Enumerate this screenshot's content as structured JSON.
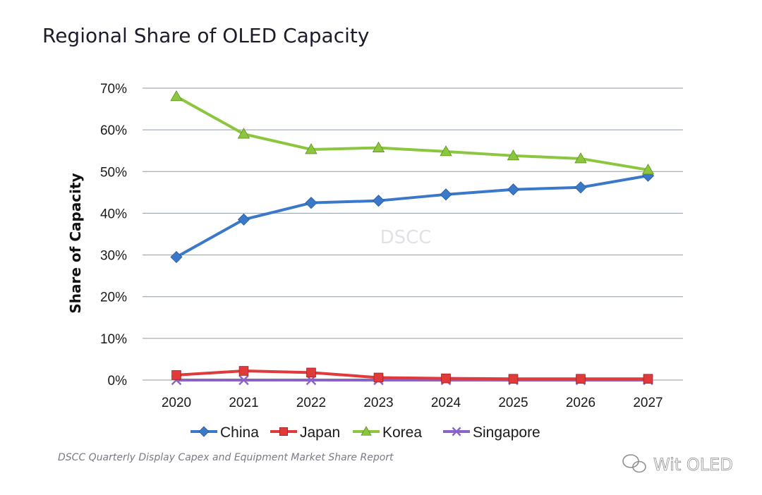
{
  "chart_data": {
    "type": "line",
    "title": "Regional Share of OLED Capacity",
    "xlabel": "",
    "ylabel": "Share of Capacity",
    "x": [
      "2020",
      "2021",
      "2022",
      "2023",
      "2024",
      "2025",
      "2026",
      "2027"
    ],
    "ylim": [
      0,
      70
    ],
    "yticks": [
      0,
      10,
      20,
      30,
      40,
      50,
      60,
      70
    ],
    "ytick_labels": [
      "0%",
      "10%",
      "20%",
      "30%",
      "40%",
      "50%",
      "60%",
      "70%"
    ],
    "grid": true,
    "legend_position": "bottom",
    "series": [
      {
        "name": "China",
        "color": "#3a78c9",
        "marker": "diamond",
        "values": [
          29.5,
          38.5,
          42.5,
          43.0,
          44.5,
          45.7,
          46.2,
          49.0
        ]
      },
      {
        "name": "Japan",
        "color": "#e03a3a",
        "marker": "square",
        "values": [
          1.2,
          2.2,
          1.8,
          0.6,
          0.4,
          0.3,
          0.3,
          0.3
        ]
      },
      {
        "name": "Korea",
        "color": "#8cc63f",
        "marker": "triangle",
        "values": [
          68.0,
          59.0,
          55.3,
          55.7,
          54.8,
          53.8,
          53.1,
          50.4
        ]
      },
      {
        "name": "Singapore",
        "color": "#8a63c6",
        "marker": "x",
        "values": [
          0.0,
          0.0,
          0.0,
          0.0,
          0.0,
          0.0,
          0.0,
          0.0
        ]
      }
    ],
    "watermark": "DSCC",
    "source_note": "DSCC Quarterly Display Capex and Equipment Market Share Report"
  },
  "brand": {
    "name": "Wit OLED",
    "icon": "wechat-icon"
  }
}
